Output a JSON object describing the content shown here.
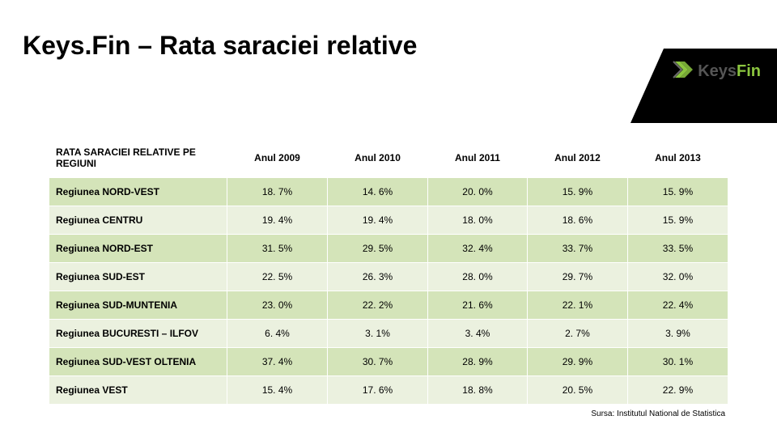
{
  "title": "Keys.Fin – Rata saraciei relative",
  "logo": {
    "brand1": "Keys",
    "brand2": "Fin",
    "chevron_fill": "#8bc53f",
    "chevron_stroke": "#6a6a6a"
  },
  "table": {
    "type": "table",
    "header_bg": "#ffffff",
    "row_odd_bg": "#d4e4b9",
    "row_even_bg": "#ebf1df",
    "border_color": "#ffffff",
    "font_size": 12,
    "columns": [
      "RATA SARACIEI RELATIVE PE REGIUNI",
      "Anul 2009",
      "Anul 2010",
      "Anul 2011",
      "Anul 2012",
      "Anul 2013"
    ],
    "rows": [
      [
        "Regiunea NORD-VEST",
        "18. 7%",
        "14. 6%",
        "20. 0%",
        "15. 9%",
        "15. 9%"
      ],
      [
        "Regiunea CENTRU",
        "19. 4%",
        "19. 4%",
        "18. 0%",
        "18. 6%",
        "15. 9%"
      ],
      [
        "Regiunea NORD-EST",
        "31. 5%",
        "29. 5%",
        "32. 4%",
        "33. 7%",
        "33. 5%"
      ],
      [
        "Regiunea SUD-EST",
        "22. 5%",
        "26. 3%",
        "28. 0%",
        "29. 7%",
        "32. 0%"
      ],
      [
        "Regiunea SUD-MUNTENIA",
        "23. 0%",
        "22. 2%",
        "21. 6%",
        "22. 1%",
        "22. 4%"
      ],
      [
        "Regiunea BUCURESTI – ILFOV",
        "6. 4%",
        "3. 1%",
        "3. 4%",
        "2. 7%",
        "3. 9%"
      ],
      [
        "Regiunea SUD-VEST OLTENIA",
        "37. 4%",
        "30. 7%",
        "28. 9%",
        "29. 9%",
        "30. 1%"
      ],
      [
        "Regiunea VEST",
        "15. 4%",
        "17. 6%",
        "18. 8%",
        "20. 5%",
        "22. 9%"
      ]
    ]
  },
  "source": "Sursa: Institutul National de Statistica"
}
